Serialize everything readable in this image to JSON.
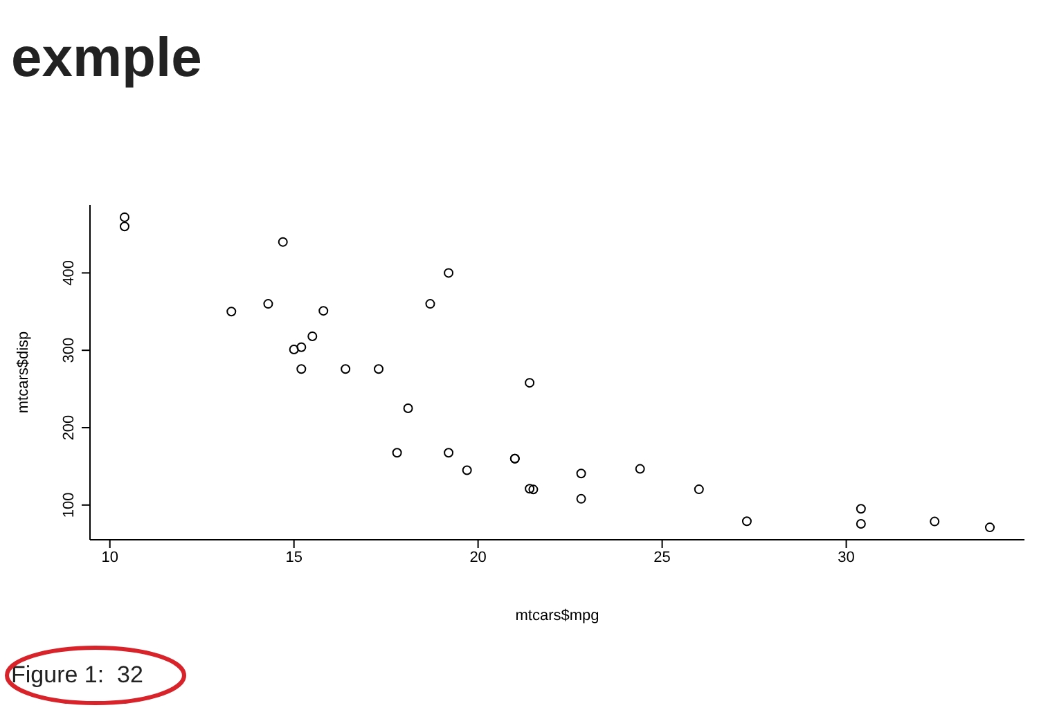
{
  "chart_data": {
    "type": "scatter",
    "title": "exmple",
    "xlabel": "mtcars$mpg",
    "ylabel": "mtcars$disp",
    "annotations": [
      "Figure 1:  32"
    ],
    "x": [
      21.0,
      21.0,
      22.8,
      21.4,
      18.7,
      18.1,
      14.3,
      24.4,
      22.8,
      19.2,
      17.8,
      16.4,
      17.3,
      15.2,
      10.4,
      10.4,
      14.7,
      32.4,
      30.4,
      33.9,
      21.5,
      15.5,
      15.2,
      13.3,
      19.2,
      27.3,
      26.0,
      30.4,
      15.8,
      19.7,
      15.0,
      21.4
    ],
    "values": [
      160,
      160,
      108,
      258,
      360,
      225,
      360,
      146.7,
      140.8,
      167.6,
      167.6,
      275.8,
      275.8,
      275.8,
      472,
      460,
      440,
      78.7,
      75.7,
      71.1,
      120.1,
      318,
      304,
      350,
      400,
      79,
      120.3,
      95.1,
      351,
      145,
      301,
      121
    ],
    "color": "#000000",
    "marker": "circle",
    "xlim": [
      9.46,
      34.84
    ],
    "xticks": [
      10,
      15,
      20,
      25,
      30
    ],
    "ylim": [
      55.1,
      488
    ],
    "yticks": [
      100,
      200,
      300,
      400
    ]
  }
}
